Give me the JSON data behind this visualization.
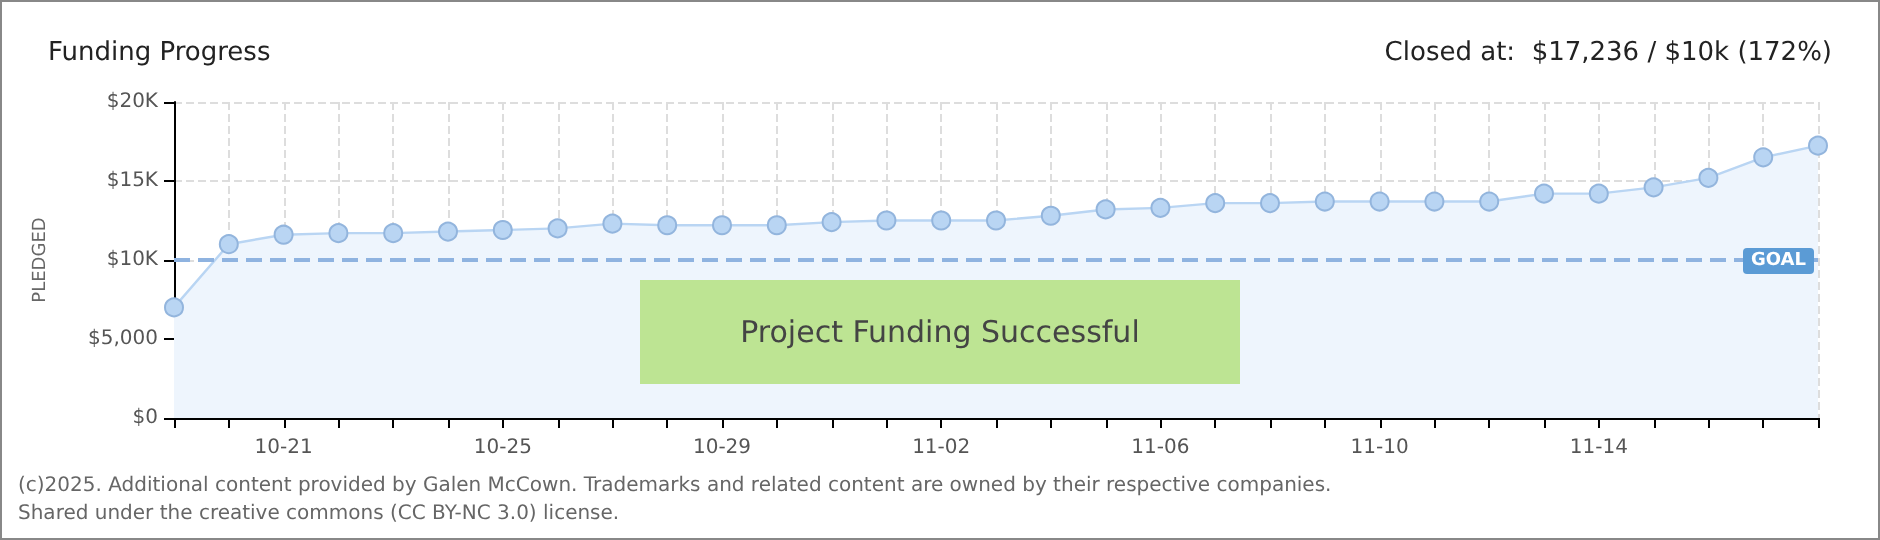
{
  "chart_data": {
    "type": "area",
    "title": "Funding Progress",
    "subtitle": "Closed at:  $17,236 / $10k (172%)",
    "ylabel": "PLEDGED",
    "categories": [
      null,
      null,
      "10-21",
      null,
      null,
      null,
      "10-25",
      null,
      null,
      null,
      "10-29",
      null,
      null,
      null,
      "11-02",
      null,
      null,
      null,
      "11-06",
      null,
      null,
      null,
      "11-10",
      null,
      null,
      null,
      "11-14",
      null,
      null,
      null,
      null
    ],
    "series": [
      {
        "color": "#b9d5f3",
        "values": [
          7000,
          11000,
          11600,
          11700,
          11700,
          11800,
          11900,
          12000,
          12300,
          12200,
          12200,
          12200,
          12400,
          12500,
          12500,
          12500,
          12800,
          13200,
          13300,
          13600,
          13600,
          13700,
          13700,
          13700,
          13700,
          14200,
          14200,
          14600,
          15200,
          16500,
          17236
        ]
      }
    ],
    "ylim": [
      0,
      20000
    ],
    "yticks": [
      {
        "value": 0,
        "label": "$0"
      },
      {
        "value": 5000,
        "label": "$5,000"
      },
      {
        "value": 10000,
        "label": "$10K"
      },
      {
        "value": 15000,
        "label": "$15K"
      },
      {
        "value": 20000,
        "label": "$20K"
      }
    ],
    "grid": true,
    "marker": "circle",
    "ref_lines": [
      {
        "axis": "y",
        "value": 10000,
        "label": "GOAL",
        "color": "#8fb3e0",
        "line_style": "dashed"
      }
    ],
    "annotations": [
      "Project Funding Successful",
      "(c)2025. Additional content provided by Galen McCown. Trademarks and related content are owned by their respective companies.",
      "Shared under the creative commons (CC BY-NC 3.0) license."
    ]
  }
}
